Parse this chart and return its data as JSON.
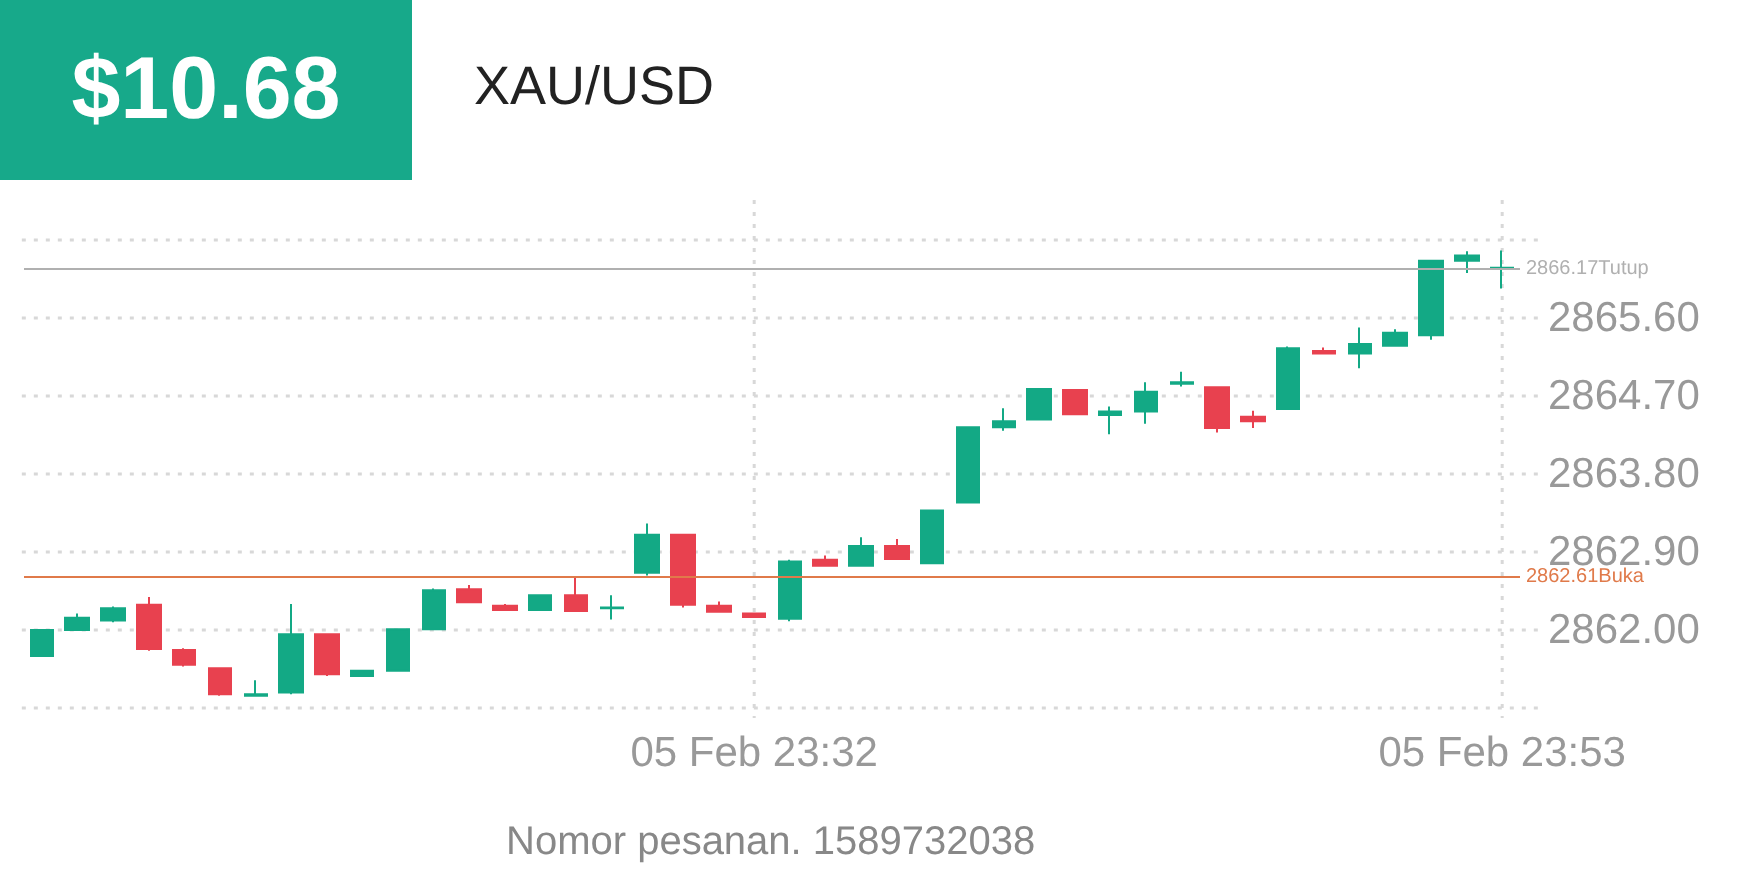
{
  "chart_data": {
    "type": "candlestick",
    "title": "XAU/USD",
    "annotations": [
      "$10.68",
      "Nomor pesanan. 1589732038"
    ],
    "categories": [
      null,
      null,
      null,
      null,
      null,
      null,
      null,
      null,
      null,
      null,
      null,
      null,
      null,
      null,
      null,
      null,
      null,
      null,
      null,
      null,
      "05 Feb 23:32",
      null,
      null,
      null,
      null,
      null,
      null,
      null,
      null,
      null,
      null,
      null,
      null,
      null,
      null,
      null,
      null,
      null,
      null,
      null,
      null,
      "05 Feb 23:53"
    ],
    "ohlc": [
      [
        2861.7,
        2862.0,
        2861.7,
        2862.0
      ],
      [
        2862.0,
        2862.19,
        2862.0,
        2862.14
      ],
      [
        2862.11,
        2862.27,
        2862.09,
        2862.25
      ],
      [
        2862.29,
        2862.38,
        2861.76,
        2861.78
      ],
      [
        2861.77,
        2861.79,
        2861.58,
        2861.6
      ],
      [
        2861.56,
        2861.56,
        2861.24,
        2861.26
      ],
      [
        2861.24,
        2861.42,
        2861.23,
        2861.26
      ],
      [
        2861.28,
        2862.3,
        2861.26,
        2861.95
      ],
      [
        2861.95,
        2861.95,
        2861.47,
        2861.49
      ],
      [
        2861.47,
        2861.53,
        2861.47,
        2861.53
      ],
      [
        2861.53,
        2862.01,
        2861.53,
        2862.01
      ],
      [
        2862.01,
        2862.48,
        2862.01,
        2862.46
      ],
      [
        2862.47,
        2862.52,
        2862.32,
        2862.32
      ],
      [
        2862.28,
        2862.3,
        2862.23,
        2862.23
      ],
      [
        2862.23,
        2862.4,
        2862.23,
        2862.4
      ],
      [
        2862.4,
        2862.61,
        2862.22,
        2862.22
      ],
      [
        2862.25,
        2862.4,
        2862.12,
        2862.26
      ],
      [
        2862.66,
        2863.23,
        2862.63,
        2863.1
      ],
      [
        2863.1,
        2863.1,
        2862.26,
        2862.29
      ],
      [
        2862.28,
        2862.33,
        2862.21,
        2862.21
      ],
      [
        2862.19,
        2862.19,
        2862.15,
        2862.15
      ],
      [
        2862.13,
        2862.81,
        2862.1,
        2862.79
      ],
      [
        2862.81,
        2862.86,
        2862.74,
        2862.74
      ],
      [
        2862.74,
        2863.07,
        2862.74,
        2862.97
      ],
      [
        2862.97,
        2863.05,
        2862.82,
        2862.82
      ],
      [
        2862.77,
        2863.38,
        2862.77,
        2863.38
      ],
      [
        2863.47,
        2864.34,
        2863.47,
        2864.34
      ],
      [
        2864.34,
        2864.56,
        2864.3,
        2864.41
      ],
      [
        2864.43,
        2864.78,
        2864.43,
        2864.78
      ],
      [
        2864.77,
        2864.77,
        2864.49,
        2864.49
      ],
      [
        2864.48,
        2864.58,
        2864.26,
        2864.52
      ],
      [
        2864.52,
        2864.86,
        2864.38,
        2864.75
      ],
      [
        2864.84,
        2864.98,
        2864.81,
        2864.86
      ],
      [
        2864.8,
        2864.8,
        2864.28,
        2864.33
      ],
      [
        2864.46,
        2864.53,
        2864.33,
        2864.41
      ],
      [
        2864.55,
        2865.27,
        2864.55,
        2865.25
      ],
      [
        2865.22,
        2865.26,
        2865.19,
        2865.19
      ],
      [
        2865.19,
        2865.49,
        2865.02,
        2865.3
      ],
      [
        2865.28,
        2865.47,
        2865.28,
        2865.43
      ],
      [
        2865.4,
        2866.26,
        2865.35,
        2866.26
      ],
      [
        2866.26,
        2866.37,
        2866.12,
        2866.32
      ],
      [
        2866.18,
        2866.38,
        2865.94,
        2866.17
      ]
    ],
    "colors": [
      "#13a985",
      "#13a985",
      "#13a985",
      "#e8414f",
      "#e8414f",
      "#e8414f",
      "#13a985",
      "#13a985",
      "#e8414f",
      "#13a985",
      "#13a985",
      "#13a985",
      "#e8414f",
      "#e8414f",
      "#13a985",
      "#e8414f",
      "#13a985",
      "#13a985",
      "#e8414f",
      "#e8414f",
      "#e8414f",
      "#13a985",
      "#e8414f",
      "#13a985",
      "#e8414f",
      "#13a985",
      "#13a985",
      "#13a985",
      "#13a985",
      "#e8414f",
      "#13a985",
      "#13a985",
      "#13a985",
      "#e8414f",
      "#e8414f",
      "#13a985",
      "#e8414f",
      "#13a985",
      "#13a985",
      "#13a985",
      "#13a985",
      "#13a985"
    ],
    "ylim": [
      2861.1,
      2866.5
    ],
    "yticks": [
      {
        "value": 2861.1,
        "label": null
      },
      {
        "value": 2862.0,
        "label": "2862.00"
      },
      {
        "value": 2862.9,
        "label": "2862.90"
      },
      {
        "value": 2863.8,
        "label": "2863.80"
      },
      {
        "value": 2864.7,
        "label": "2864.70"
      },
      {
        "value": 2865.6,
        "label": "2865.60"
      },
      {
        "value": 2866.5,
        "label": null
      }
    ],
    "ref_lines": [
      {
        "axis": "y",
        "value": 2866.17,
        "label": "2866.17Tutup",
        "color": "#b0b0b0"
      },
      {
        "axis": "y",
        "value": 2862.61,
        "label": "2862.61Buka",
        "color": "#e07a4a"
      }
    ],
    "grid": true
  }
}
